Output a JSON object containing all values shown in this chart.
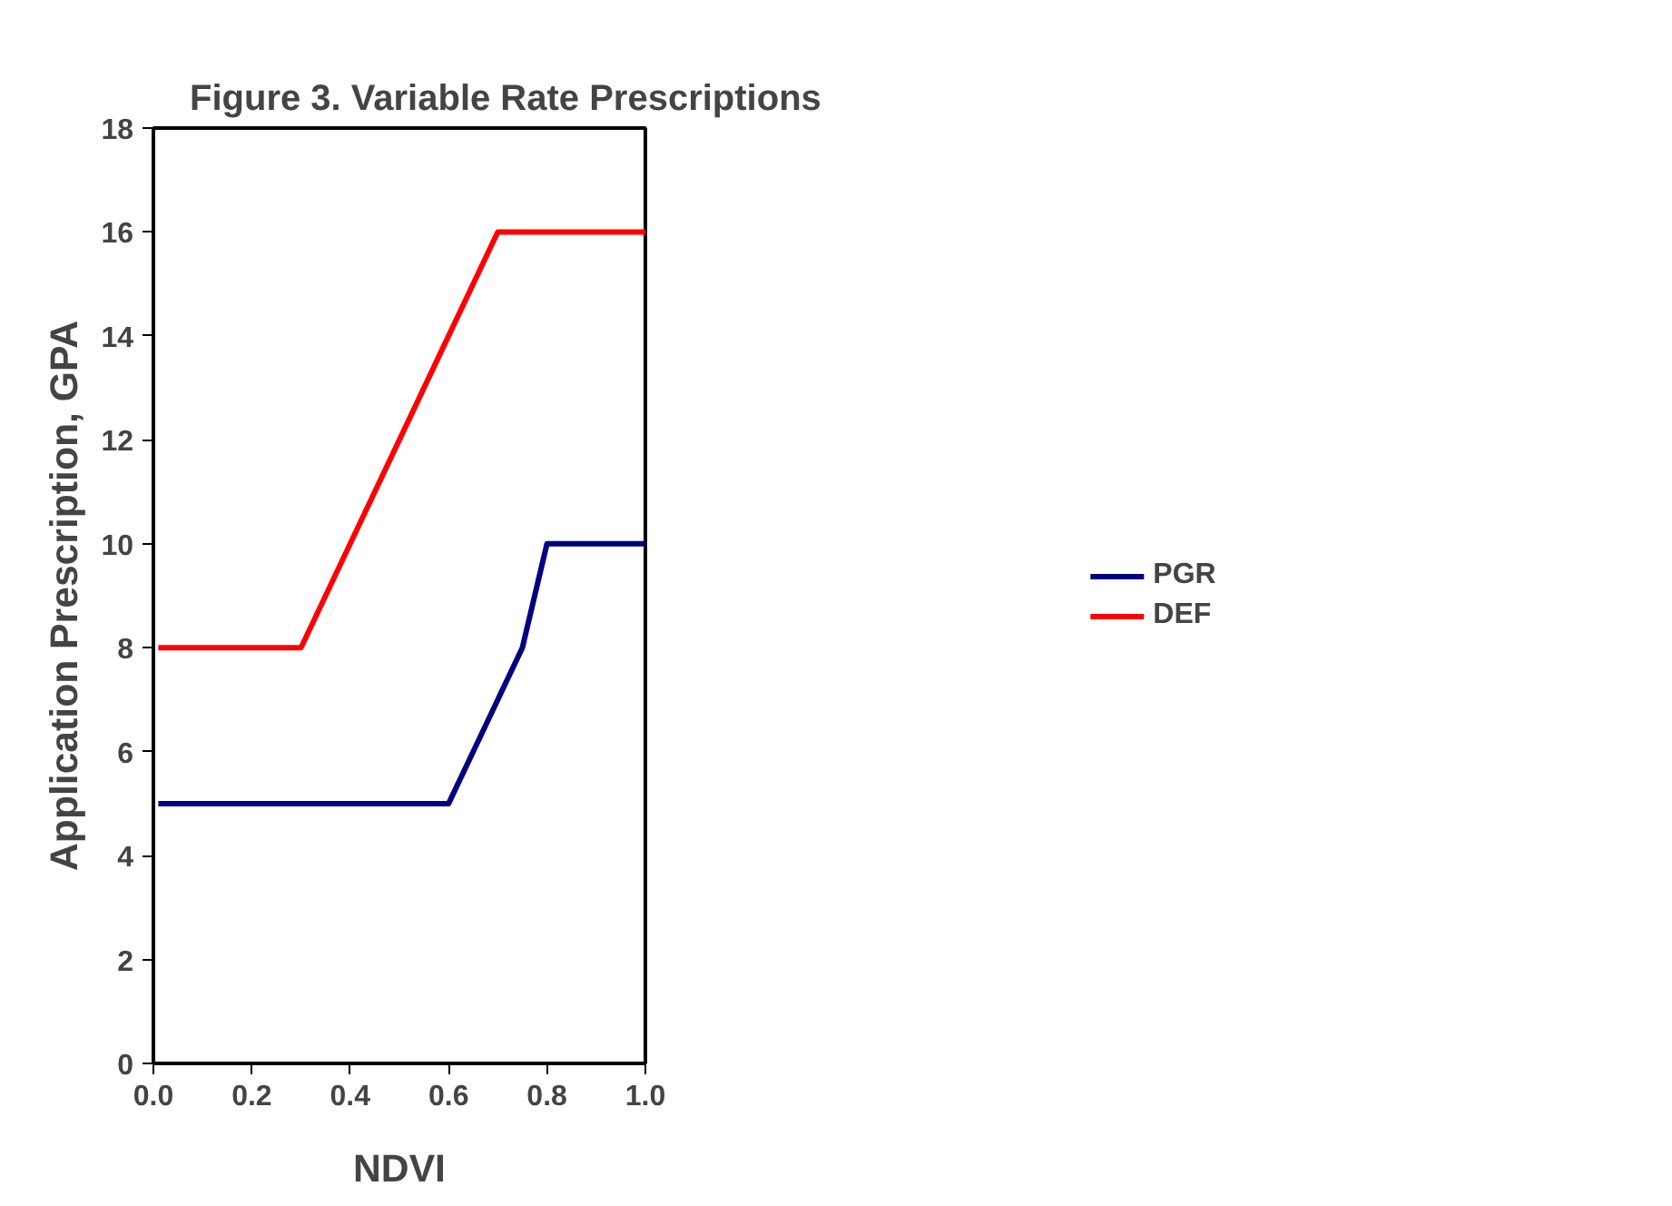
{
  "chart_data": {
    "type": "line",
    "title": "Figure 3.  Variable Rate Prescriptions",
    "xlabel": "NDVI",
    "ylabel": "Application Prescription, GPA",
    "series": [
      {
        "name": "PGR",
        "color": "#000080",
        "x": [
          0.01,
          0.6,
          0.7,
          0.75,
          0.8,
          1.0
        ],
        "values": [
          5,
          5,
          7,
          8,
          10,
          10
        ]
      },
      {
        "name": "DEF",
        "color": "#ff0000",
        "x": [
          0.01,
          0.3,
          0.4,
          0.6,
          0.7,
          1.0
        ],
        "values": [
          8,
          8,
          10,
          14,
          16,
          16
        ]
      }
    ],
    "xlim": [
      0,
      1.0
    ],
    "xticks": [
      {
        "value": 0,
        "label": "0.0"
      },
      {
        "value": 0.2,
        "label": "0.2"
      },
      {
        "value": 0.4,
        "label": "0.4"
      },
      {
        "value": 0.6,
        "label": "0.6"
      },
      {
        "value": 0.8,
        "label": "0.8"
      },
      {
        "value": 1.0,
        "label": "1.0"
      }
    ],
    "ylim": [
      0,
      18
    ],
    "yticks": [
      0,
      2,
      4,
      6,
      8,
      10,
      12,
      14,
      16,
      18
    ],
    "grid": false,
    "legend": "right",
    "marker": "none",
    "line_style": "solid"
  }
}
